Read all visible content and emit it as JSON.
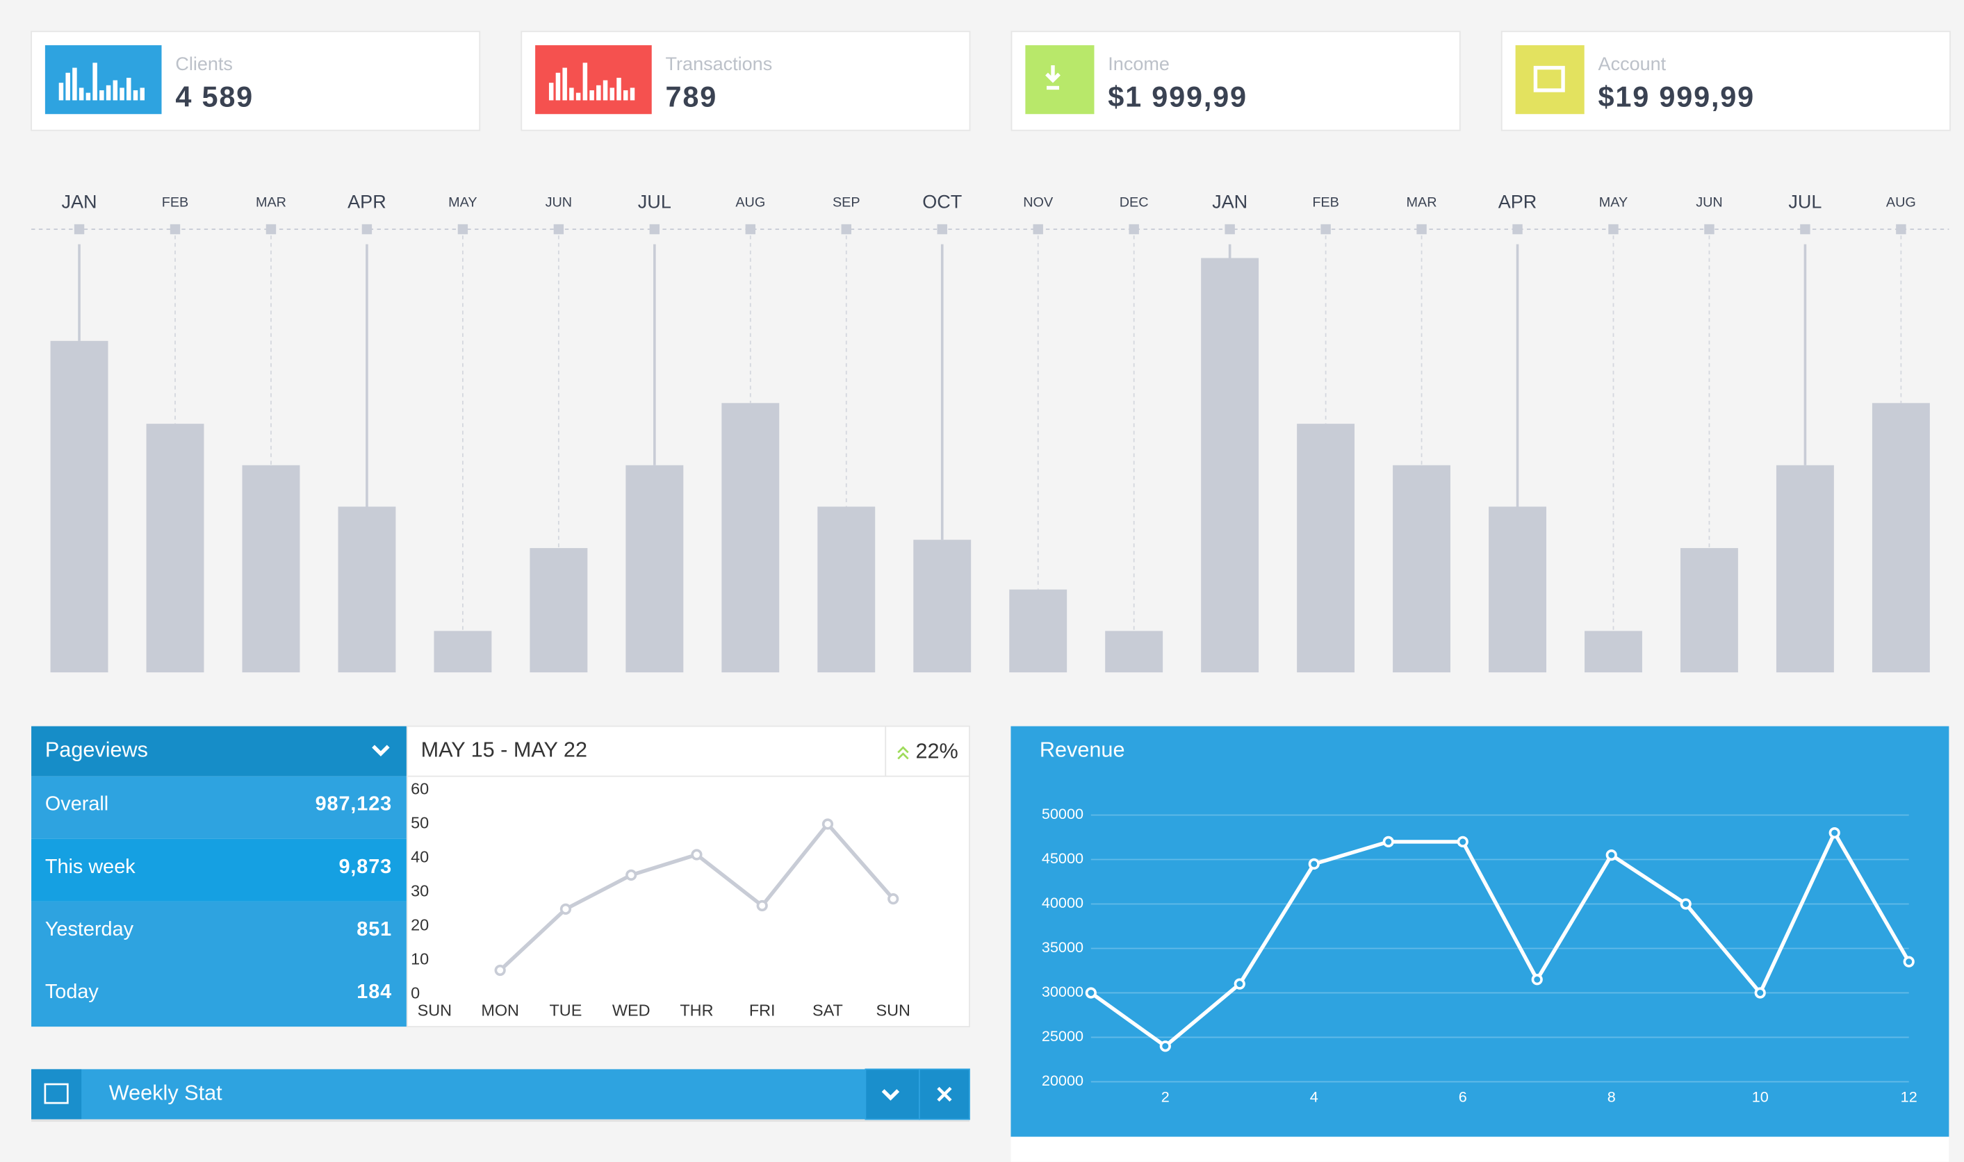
{
  "stat_cards": [
    {
      "label": "Clients",
      "value": "4 589"
    },
    {
      "label": "Transactions",
      "value": "789"
    },
    {
      "label": "Income",
      "value": "$1 999,99"
    },
    {
      "label": "Account",
      "value": "$19 999,99"
    }
  ],
  "chart_data": [
    {
      "type": "bar",
      "categories": [
        "JAN",
        "FEB",
        "MAR",
        "APR",
        "MAY",
        "JUN",
        "JUL",
        "AUG",
        "SEP",
        "OCT",
        "NOV",
        "DEC",
        "JAN",
        "FEB",
        "MAR",
        "APR",
        "MAY",
        "JUN",
        "JUL",
        "AUG"
      ],
      "values": [
        8,
        6,
        5,
        4,
        1,
        3,
        5,
        6.5,
        4,
        3.2,
        2,
        1,
        10,
        6,
        5,
        4,
        1,
        3,
        5,
        6.5
      ],
      "color": "#c8ccd6"
    },
    {
      "type": "line",
      "title": "MAY 15 - MAY 22",
      "categories": [
        "SUN",
        "MON",
        "TUE",
        "WED",
        "THR",
        "FRI",
        "SAT",
        "SUN"
      ],
      "values": [
        null,
        7,
        25,
        35,
        41,
        26,
        50,
        28
      ],
      "color": "#c8ccd6",
      "ylim": [
        0,
        60
      ],
      "yticks": [
        0,
        10,
        20,
        30,
        40,
        50,
        60
      ]
    },
    {
      "type": "line",
      "title": "Revenue",
      "x": [
        1,
        2,
        3,
        4,
        5,
        6,
        7,
        8,
        9,
        10,
        11,
        12
      ],
      "values": [
        30000,
        24000,
        31000,
        44500,
        47000,
        47000,
        31500,
        45500,
        40000,
        30000,
        48000,
        33500
      ],
      "color": "#ffffff",
      "xlim": [
        1,
        12
      ],
      "xticks": [
        2,
        4,
        6,
        8,
        10,
        12
      ],
      "ylim": [
        20000,
        50000
      ],
      "yticks": [
        20000,
        25000,
        30000,
        35000,
        40000,
        45000,
        50000
      ],
      "grid": true
    }
  ],
  "pageviews": {
    "title": "Pageviews",
    "change": "22%",
    "rows": [
      {
        "label": "Overall",
        "value": "987,123"
      },
      {
        "label": "This week",
        "value": "9,873"
      },
      {
        "label": "Yesterday",
        "value": "851"
      },
      {
        "label": "Today",
        "value": "184"
      }
    ]
  },
  "weekly_stat": {
    "title": "Weekly Stat"
  }
}
